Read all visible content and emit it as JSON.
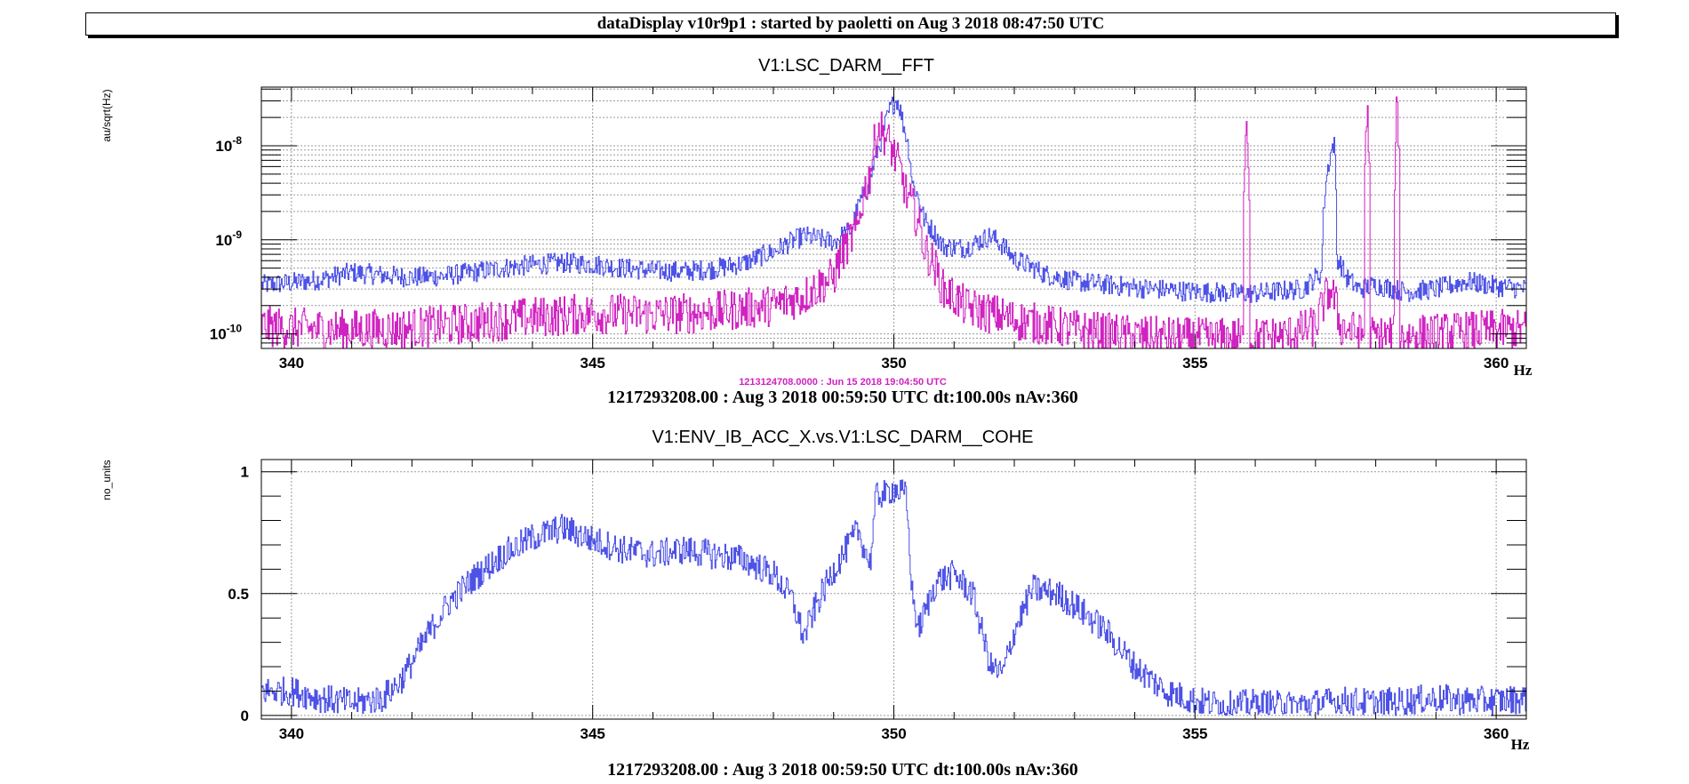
{
  "header": {
    "title": "dataDisplay v10r9p1 : started by paoletti on Aug  3 2018 08:47:50 UTC"
  },
  "chart_data": [
    {
      "type": "line",
      "title": "V1:LSC_DARM__FFT",
      "ylabel": "au/sqrt(Hz)",
      "xunit": "Hz",
      "xlim": [
        339.5,
        360.5
      ],
      "ylim": [
        7e-11,
        4.2e-08
      ],
      "ylog": true,
      "grid": true,
      "xticks": [
        340,
        345,
        350,
        355,
        360
      ],
      "yticks": [
        {
          "value": 1e-10,
          "base": "10",
          "exp": "-10"
        },
        {
          "value": 1e-09,
          "base": "10",
          "exp": "-9"
        },
        {
          "value": 1e-08,
          "base": "10",
          "exp": "-8"
        }
      ],
      "reference_label": "1213124708.0000 : Jun 15 2018 19:04:50 UTC",
      "footer": "1217293208.00 : Aug  3 2018 00:59:50 UTC dt:100.00s nAv:360",
      "series": [
        {
          "color": "#4b50e6",
          "points": [
            [
              339.5,
              3.3e-10
            ],
            [
              340.0,
              3.5e-10
            ],
            [
              340.5,
              3.8e-10
            ],
            [
              341.0,
              4.5e-10
            ],
            [
              341.5,
              4.2e-10
            ],
            [
              342.0,
              4e-10
            ],
            [
              342.5,
              4.1e-10
            ],
            [
              343.0,
              4.5e-10
            ],
            [
              343.5,
              5e-10
            ],
            [
              344.0,
              5.4e-10
            ],
            [
              344.5,
              5.7e-10
            ],
            [
              345.0,
              5.5e-10
            ],
            [
              345.5,
              5e-10
            ],
            [
              346.0,
              4.7e-10
            ],
            [
              346.5,
              4.6e-10
            ],
            [
              347.0,
              4.9e-10
            ],
            [
              347.5,
              5.6e-10
            ],
            [
              348.0,
              7.5e-10
            ],
            [
              348.5,
              1.1e-09
            ],
            [
              349.0,
              9.5e-10
            ],
            [
              349.3,
              1.3e-09
            ],
            [
              349.6,
              4e-09
            ],
            [
              349.8,
              1.2e-08
            ],
            [
              349.95,
              2.6e-08
            ],
            [
              350.05,
              3.1e-08
            ],
            [
              350.15,
              1.7e-08
            ],
            [
              350.3,
              4e-09
            ],
            [
              350.5,
              1.6e-09
            ],
            [
              350.8,
              8.5e-10
            ],
            [
              351.2,
              8.2e-10
            ],
            [
              351.6,
              1.1e-09
            ],
            [
              352.0,
              6.2e-10
            ],
            [
              352.5,
              4.3e-10
            ],
            [
              353.0,
              3.6e-10
            ],
            [
              354.0,
              3.1e-10
            ],
            [
              355.0,
              2.8e-10
            ],
            [
              356.0,
              2.7e-10
            ],
            [
              356.8,
              3e-10
            ],
            [
              357.1,
              4.5e-10
            ],
            [
              357.3,
              1.1e-08
            ],
            [
              357.35,
              6.5e-10
            ],
            [
              357.5,
              4e-10
            ],
            [
              357.7,
              3e-10
            ],
            [
              358.0,
              3.3e-10
            ],
            [
              358.5,
              2.8e-10
            ],
            [
              359.0,
              3e-10
            ],
            [
              359.5,
              3.6e-10
            ],
            [
              360.0,
              3.2e-10
            ],
            [
              360.5,
              3e-10
            ]
          ]
        },
        {
          "color": "#d020c0",
          "points": [
            [
              339.5,
              1.2e-10
            ],
            [
              340.0,
              1.15e-10
            ],
            [
              341.0,
              1.1e-10
            ],
            [
              342.0,
              1.15e-10
            ],
            [
              343.0,
              1.3e-10
            ],
            [
              344.0,
              1.5e-10
            ],
            [
              345.0,
              1.65e-10
            ],
            [
              346.0,
              1.6e-10
            ],
            [
              347.0,
              1.7e-10
            ],
            [
              348.0,
              2e-10
            ],
            [
              348.5,
              2.5e-10
            ],
            [
              349.0,
              4e-10
            ],
            [
              349.4,
              1.3e-09
            ],
            [
              349.6,
              5e-09
            ],
            [
              349.75,
              1.6e-08
            ],
            [
              349.9,
              1.1e-08
            ],
            [
              350.0,
              8e-09
            ],
            [
              350.2,
              3e-09
            ],
            [
              350.5,
              8e-10
            ],
            [
              350.8,
              3e-10
            ],
            [
              351.2,
              1.9e-10
            ],
            [
              352.0,
              1.4e-10
            ],
            [
              353.0,
              1.1e-10
            ],
            [
              354.0,
              9.5e-11
            ],
            [
              355.0,
              9e-11
            ],
            [
              355.8,
              9e-11
            ],
            [
              355.85,
              2.2e-08
            ],
            [
              355.9,
              9e-11
            ],
            [
              356.5,
              9.5e-11
            ],
            [
              357.0,
              1.2e-10
            ],
            [
              357.25,
              3e-10
            ],
            [
              357.4,
              1.2e-10
            ],
            [
              357.8,
              9.5e-11
            ],
            [
              357.85,
              2.3e-08
            ],
            [
              357.9,
              9.5e-11
            ],
            [
              358.3,
              9.5e-11
            ],
            [
              358.35,
              2.6e-08
            ],
            [
              358.4,
              9.5e-11
            ],
            [
              359.0,
              1e-10
            ],
            [
              360.0,
              1.1e-10
            ],
            [
              360.5,
              1.1e-10
            ]
          ]
        }
      ]
    },
    {
      "type": "line",
      "title": "V1:ENV_IB_ACC_X.vs.V1:LSC_DARM__COHE",
      "ylabel": "no_units",
      "xunit": "Hz",
      "xlim": [
        339.5,
        360.5
      ],
      "ylim": [
        -0.015,
        1.05
      ],
      "grid": true,
      "xticks": [
        340,
        345,
        350,
        355,
        360
      ],
      "yticks": [
        0,
        0.5,
        1
      ],
      "footer": "1217293208.00 : Aug  3 2018 00:59:50 UTC dt:100.00s nAv:360",
      "series": [
        {
          "color": "#4b50e6",
          "points": [
            [
              339.5,
              0.1
            ],
            [
              340.0,
              0.1
            ],
            [
              340.5,
              0.07
            ],
            [
              341.0,
              0.05
            ],
            [
              341.5,
              0.07
            ],
            [
              341.8,
              0.14
            ],
            [
              342.0,
              0.22
            ],
            [
              342.3,
              0.35
            ],
            [
              342.6,
              0.46
            ],
            [
              343.0,
              0.56
            ],
            [
              343.5,
              0.66
            ],
            [
              344.0,
              0.73
            ],
            [
              344.5,
              0.77
            ],
            [
              345.0,
              0.72
            ],
            [
              345.5,
              0.68
            ],
            [
              346.0,
              0.66
            ],
            [
              346.5,
              0.68
            ],
            [
              347.0,
              0.66
            ],
            [
              347.5,
              0.64
            ],
            [
              348.0,
              0.58
            ],
            [
              348.3,
              0.48
            ],
            [
              348.5,
              0.32
            ],
            [
              348.7,
              0.45
            ],
            [
              349.0,
              0.6
            ],
            [
              349.4,
              0.76
            ],
            [
              349.6,
              0.62
            ],
            [
              349.7,
              0.9
            ],
            [
              350.0,
              0.93
            ],
            [
              350.2,
              0.9
            ],
            [
              350.3,
              0.5
            ],
            [
              350.4,
              0.35
            ],
            [
              350.7,
              0.55
            ],
            [
              351.0,
              0.58
            ],
            [
              351.3,
              0.5
            ],
            [
              351.6,
              0.2
            ],
            [
              351.8,
              0.17
            ],
            [
              352.0,
              0.35
            ],
            [
              352.3,
              0.52
            ],
            [
              352.7,
              0.5
            ],
            [
              353.0,
              0.45
            ],
            [
              353.5,
              0.35
            ],
            [
              354.0,
              0.2
            ],
            [
              354.5,
              0.1
            ],
            [
              355.0,
              0.06
            ],
            [
              355.5,
              0.04
            ],
            [
              356.0,
              0.05
            ],
            [
              356.5,
              0.04
            ],
            [
              357.0,
              0.05
            ],
            [
              357.5,
              0.06
            ],
            [
              358.0,
              0.05
            ],
            [
              358.5,
              0.06
            ],
            [
              359.0,
              0.07
            ],
            [
              359.5,
              0.06
            ],
            [
              360.0,
              0.06
            ],
            [
              360.5,
              0.07
            ]
          ]
        }
      ]
    }
  ]
}
